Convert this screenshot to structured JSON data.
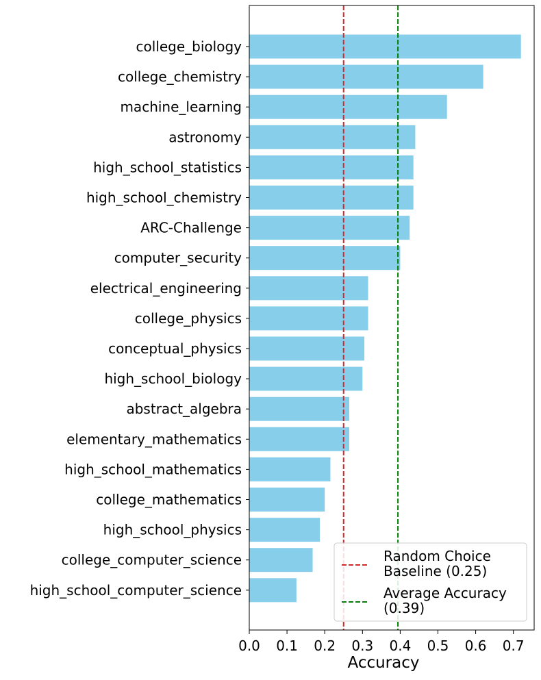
{
  "chart_data": {
    "type": "bar",
    "orientation": "horizontal",
    "categories": [
      "college_biology",
      "college_chemistry",
      "machine_learning",
      "astronomy",
      "high_school_statistics",
      "high_school_chemistry",
      "ARC-Challenge",
      "computer_security",
      "electrical_engineering",
      "college_physics",
      "conceptual_physics",
      "high_school_biology",
      "abstract_algebra",
      "elementary_mathematics",
      "high_school_mathematics",
      "college_mathematics",
      "high_school_physics",
      "college_computer_science",
      "high_school_computer_science"
    ],
    "values": [
      0.72,
      0.62,
      0.524,
      0.44,
      0.435,
      0.435,
      0.425,
      0.4,
      0.315,
      0.315,
      0.305,
      0.3,
      0.265,
      0.265,
      0.215,
      0.2,
      0.187,
      0.168,
      0.125
    ],
    "bar_color": "#87ceeb",
    "xlabel": "Accuracy",
    "ylabel": "",
    "title": "",
    "xlim": [
      0,
      0.755
    ],
    "xticks": [
      "0.0",
      "0.1",
      "0.2",
      "0.3",
      "0.4",
      "0.5",
      "0.6",
      "0.7"
    ],
    "grid": false,
    "reference_lines": [
      {
        "label": "Random Choice\nBaseline (0.25)",
        "value": 0.25,
        "color": "#d62728",
        "style": "dashed"
      },
      {
        "label": "Average Accuracy\n(0.39)",
        "value": 0.394,
        "color": "#008000",
        "style": "dashed"
      }
    ],
    "legend_position": "lower-right"
  }
}
